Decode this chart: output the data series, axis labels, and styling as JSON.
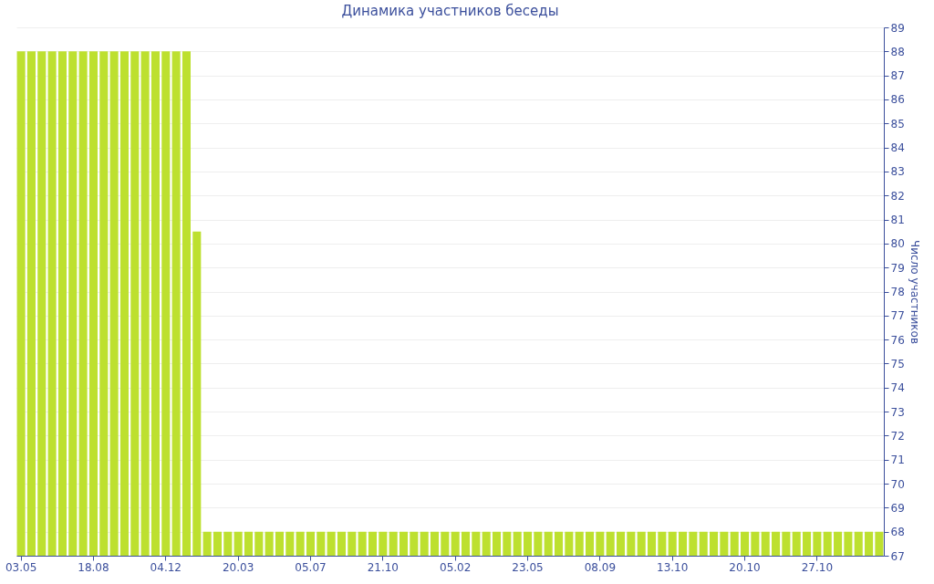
{
  "chart_data": {
    "type": "bar",
    "title": "Динамика участников беседы",
    "ylabel": "Число участников",
    "categories": [
      "03.05",
      null,
      null,
      null,
      null,
      null,
      null,
      "18.08",
      null,
      null,
      null,
      null,
      null,
      null,
      "04.12",
      null,
      null,
      null,
      null,
      null,
      null,
      "20.03",
      null,
      null,
      null,
      null,
      null,
      null,
      "05.07",
      null,
      null,
      null,
      null,
      null,
      null,
      "21.10",
      null,
      null,
      null,
      null,
      null,
      null,
      "05.02",
      null,
      null,
      null,
      null,
      null,
      null,
      "23.05",
      null,
      null,
      null,
      null,
      null,
      null,
      "08.09",
      null,
      null,
      null,
      null,
      null,
      null,
      "13.10",
      null,
      null,
      null,
      null,
      null,
      null,
      "20.10",
      null,
      null,
      null,
      null,
      null,
      null,
      "27.10",
      null,
      null,
      null,
      null,
      null,
      null
    ],
    "values": [
      88,
      88,
      88,
      88,
      88,
      88,
      88,
      88,
      88,
      88,
      88,
      88,
      88,
      88,
      88,
      88,
      88,
      80.5,
      68,
      68,
      68,
      68,
      68,
      68,
      68,
      68,
      68,
      68,
      68,
      68,
      68,
      68,
      68,
      68,
      68,
      68,
      68,
      68,
      68,
      68,
      68,
      68,
      68,
      68,
      68,
      68,
      68,
      68,
      68,
      68,
      68,
      68,
      68,
      68,
      68,
      68,
      68,
      68,
      68,
      68,
      68,
      68,
      68,
      68,
      68,
      68,
      68,
      68,
      68,
      68,
      68,
      68,
      68,
      68,
      68,
      68,
      68,
      68,
      68,
      68,
      68,
      68,
      68,
      68
    ],
    "color": "#bde02f",
    "ylim": [
      67,
      89
    ],
    "yticks": [
      67,
      68,
      69,
      70,
      71,
      72,
      73,
      74,
      75,
      76,
      77,
      78,
      79,
      80,
      81,
      82,
      83,
      84,
      85,
      86,
      87,
      88,
      89
    ],
    "grid": "y"
  }
}
